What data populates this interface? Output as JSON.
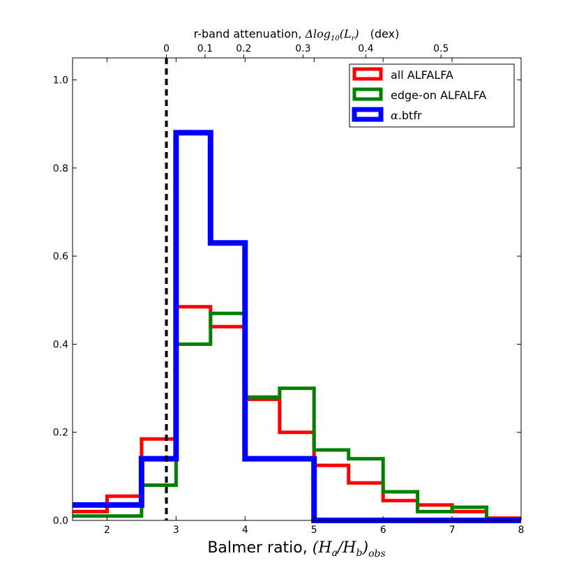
{
  "chart_data": {
    "type": "histogram-step",
    "xlim": [
      1.5,
      8
    ],
    "ylim": [
      0,
      1.05
    ],
    "xticks": [
      2,
      3,
      4,
      5,
      6,
      7,
      8
    ],
    "yticks": [
      0.0,
      0.2,
      0.4,
      0.6,
      0.8,
      1.0
    ],
    "xlabel": "Balmer ratio, ",
    "xlabel_math": "(H_a/H_b)_obs",
    "xlabel_math_main": "(H",
    "xlabel_math_a": "a",
    "xlabel_math_mid": "/H",
    "xlabel_math_b": "b",
    "xlabel_math_close": ")",
    "xlabel_math_sub": "obs",
    "top_axis": {
      "label_prefix": "r-band attenuation, ",
      "label_delta": "Δlog",
      "label_sub": "10",
      "label_arg": "(L",
      "label_arg_sub": "r",
      "label_close": ")",
      "label_units": "(dex)",
      "ticks": [
        {
          "label": "0",
          "x": 2.86
        },
        {
          "label": "0.1",
          "x": 3.42
        },
        {
          "label": "0.2",
          "x": 3.98
        },
        {
          "label": "0.3",
          "x": 4.84
        },
        {
          "label": "0.4",
          "x": 5.75
        },
        {
          "label": "0.5",
          "x": 6.84
        }
      ]
    },
    "vline": {
      "x": 2.86,
      "style": "dashed",
      "color": "#000000"
    },
    "bins": [
      1.5,
      2.0,
      2.5,
      3.0,
      3.5,
      4.0,
      4.5,
      5.0,
      5.5,
      6.0,
      6.5,
      7.0,
      7.5,
      8.0
    ],
    "series": [
      {
        "name": "all ALFALFA",
        "color": "#ff0000",
        "values": [
          0.02,
          0.055,
          0.185,
          0.485,
          0.44,
          0.275,
          0.2,
          0.125,
          0.085,
          0.045,
          0.035,
          0.02,
          0.005
        ]
      },
      {
        "name": "edge-on ALFALFA",
        "color": "#008000",
        "values": [
          0.01,
          0.01,
          0.08,
          0.4,
          0.47,
          0.28,
          0.3,
          0.16,
          0.14,
          0.065,
          0.02,
          0.03,
          0.0
        ]
      },
      {
        "name": "α.btfr",
        "name_greek": "α",
        "name_rest": ".btfr",
        "color": "#0000ff",
        "values": [
          0.035,
          0.035,
          0.14,
          0.88,
          0.63,
          0.14,
          0.14,
          0.0,
          0.0,
          0.0,
          0.0,
          0.0,
          0.0
        ]
      }
    ],
    "legend_position": "top-right"
  }
}
